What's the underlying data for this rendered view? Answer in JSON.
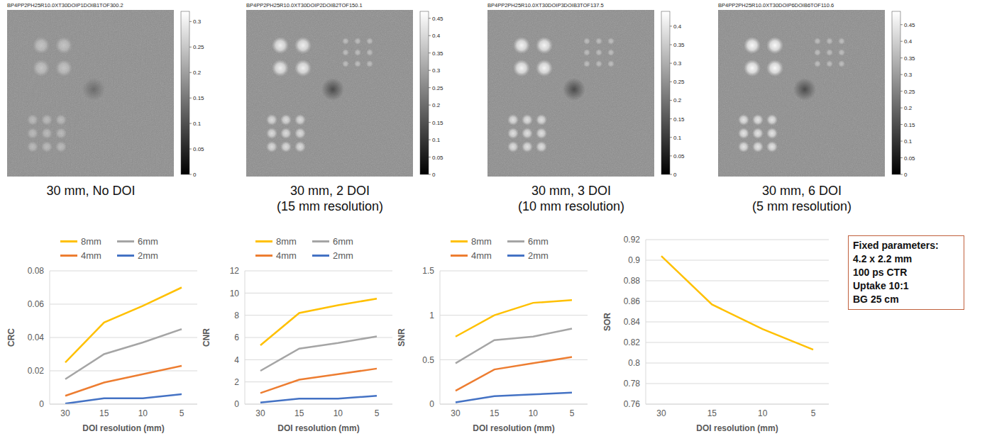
{
  "panels": [
    {
      "filename": "BP4PP2PH25R10.0XT30DOIP1DOIB1TOF300.2",
      "caption": [
        "30 mm, No DOI"
      ],
      "colorbar": {
        "range": [
          0,
          0.32
        ],
        "ticks": [
          0,
          0.05,
          0.1,
          0.15,
          0.2,
          0.25,
          0.3
        ]
      }
    },
    {
      "filename": "BP4PP2PH25R10.0XT30DOIP2DOIB2TOF150.1",
      "caption": [
        "30 mm, 2 DOI",
        "(15 mm resolution)"
      ],
      "colorbar": {
        "range": [
          0,
          0.47
        ],
        "ticks": [
          0,
          0.05,
          0.1,
          0.15,
          0.2,
          0.25,
          0.3,
          0.35,
          0.4,
          0.45
        ]
      }
    },
    {
      "filename": "BP4PP2PH25R10.0XT30DOIP3DOIB3TOF137.5",
      "caption": [
        "30 mm, 3 DOI",
        "(10 mm resolution)"
      ],
      "colorbar": {
        "range": [
          0,
          0.44
        ],
        "ticks": [
          0,
          0.05,
          0.1,
          0.15,
          0.2,
          0.25,
          0.3,
          0.35,
          0.4
        ]
      }
    },
    {
      "filename": "BP4PP2PH25R10.0XT30DOIP6DOIB6TOF110.6",
      "caption": [
        "30 mm, 6 DOI",
        "(5 mm resolution)"
      ],
      "colorbar": {
        "range": [
          0,
          0.49
        ],
        "ticks": [
          0,
          0.05,
          0.1,
          0.15,
          0.2,
          0.25,
          0.3,
          0.35,
          0.4,
          0.45
        ]
      }
    }
  ],
  "chart_data": [
    {
      "type": "line",
      "categories": [
        "30",
        "15",
        "10",
        "5"
      ],
      "x_label": "DOI resolution (mm)",
      "y_label": "CRC",
      "ylim": [
        0,
        0.08
      ],
      "yticks": [
        0,
        0.02,
        0.04,
        0.06,
        0.08
      ],
      "grid": true,
      "legend": "top",
      "series": [
        {
          "name": "8mm",
          "color": "#ffc000",
          "values": [
            0.025,
            0.049,
            0.059,
            0.07
          ]
        },
        {
          "name": "6mm",
          "color": "#a5a5a5",
          "values": [
            0.015,
            0.03,
            0.037,
            0.045
          ]
        },
        {
          "name": "4mm",
          "color": "#ed7d31",
          "values": [
            0.005,
            0.013,
            0.018,
            0.023
          ]
        },
        {
          "name": "2mm",
          "color": "#4472c4",
          "values": [
            0.0003,
            0.0035,
            0.0035,
            0.006
          ]
        }
      ]
    },
    {
      "type": "line",
      "categories": [
        "30",
        "15",
        "10",
        "5"
      ],
      "x_label": "DOI resolution (mm)",
      "y_label": "CNR",
      "ylim": [
        0,
        12
      ],
      "yticks": [
        0,
        2,
        4,
        6,
        8,
        10,
        12
      ],
      "grid": true,
      "legend": "top",
      "series": [
        {
          "name": "8mm",
          "color": "#ffc000",
          "values": [
            5.3,
            8.2,
            8.9,
            9.5
          ]
        },
        {
          "name": "6mm",
          "color": "#a5a5a5",
          "values": [
            3.0,
            5.0,
            5.5,
            6.1
          ]
        },
        {
          "name": "4mm",
          "color": "#ed7d31",
          "values": [
            1.0,
            2.2,
            2.7,
            3.2
          ]
        },
        {
          "name": "2mm",
          "color": "#4472c4",
          "values": [
            0.15,
            0.5,
            0.5,
            0.75
          ]
        }
      ]
    },
    {
      "type": "line",
      "categories": [
        "30",
        "15",
        "10",
        "5"
      ],
      "x_label": "DOI resolution (mm)",
      "y_label": "SNR",
      "ylim": [
        0,
        1.5
      ],
      "yticks": [
        0,
        0.5,
        1,
        1.5
      ],
      "grid": true,
      "legend": "top",
      "series": [
        {
          "name": "8mm",
          "color": "#ffc000",
          "values": [
            0.76,
            1.0,
            1.14,
            1.17
          ]
        },
        {
          "name": "6mm",
          "color": "#a5a5a5",
          "values": [
            0.46,
            0.72,
            0.76,
            0.85
          ]
        },
        {
          "name": "4mm",
          "color": "#ed7d31",
          "values": [
            0.15,
            0.39,
            0.46,
            0.53
          ]
        },
        {
          "name": "2mm",
          "color": "#4472c4",
          "values": [
            0.02,
            0.09,
            0.11,
            0.13
          ]
        }
      ]
    },
    {
      "type": "line",
      "categories": [
        "30",
        "15",
        "10",
        "5"
      ],
      "x_label": "DOI resolution (mm)",
      "y_label": "SOR",
      "ylim": [
        0.76,
        0.92
      ],
      "yticks": [
        0.76,
        0.78,
        0.8,
        0.82,
        0.84,
        0.86,
        0.88,
        0.9,
        0.92
      ],
      "grid": true,
      "series": [
        {
          "color": "#ffc000",
          "values": [
            0.904,
            0.857,
            0.833,
            0.813
          ]
        }
      ]
    }
  ],
  "box": {
    "title": "Fixed parameters:",
    "lines": [
      "4.2 x 2.2 mm",
      "100 ps CTR",
      "Uptake 10:1",
      "BG 25 cm"
    ]
  }
}
